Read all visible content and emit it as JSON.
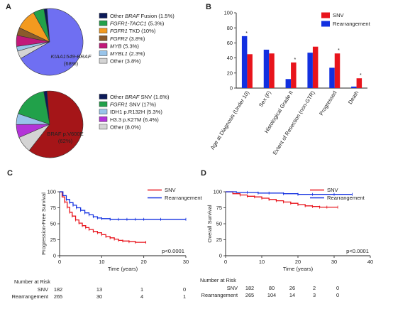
{
  "panels": {
    "a": "A",
    "b": "B",
    "c": "C",
    "d": "D"
  },
  "colors": {
    "navy": "#0b1a59",
    "green": "#21a14a",
    "orange": "#f39a1f",
    "brown": "#8b5a2b",
    "magenta": "#c2187a",
    "lightblue": "#98c4ea",
    "grey": "#d4d4d4",
    "periwinkle": "#6f6ff2",
    "darkred": "#a51518",
    "purple": "#b334d8",
    "red": "#e8141c",
    "blue": "#1230e0"
  },
  "chart_data": [
    {
      "type": "pie",
      "title": "",
      "slices": [
        {
          "name": "Other BRAF Fusion",
          "value": 1.5,
          "legend_pre": "Other ",
          "legend_it": "BRAF",
          "legend_post": " Fusion (1.5%)",
          "color": "navy"
        },
        {
          "name": "FGFR1-TACC1",
          "value": 5.3,
          "legend_pre": "",
          "legend_it": "FGFR1-TACC1",
          "legend_post": " (5.3%)",
          "color": "green"
        },
        {
          "name": "FGFR1 TKD",
          "value": 10,
          "legend_pre": "",
          "legend_it": "FGFR1",
          "legend_post": " TKD (10%)",
          "color": "orange"
        },
        {
          "name": "FGFR2",
          "value": 3.8,
          "legend_pre": "",
          "legend_it": "FGFR2",
          "legend_post": " (3.8%)",
          "color": "brown"
        },
        {
          "name": "MYB",
          "value": 5.3,
          "legend_pre": "",
          "legend_it": "MYB",
          "legend_post": " (5.3%)",
          "color": "magenta"
        },
        {
          "name": "MYBL1",
          "value": 2.3,
          "legend_pre": "",
          "legend_it": "MYBL1",
          "legend_post": " (2.3%)",
          "color": "lightblue"
        },
        {
          "name": "Other",
          "value": 3.8,
          "legend_pre": "Other (3.8%)",
          "legend_it": "",
          "legend_post": "",
          "color": "grey"
        },
        {
          "name": "KIAA1549-BRAF",
          "value": 68,
          "color": "periwinkle"
        }
      ],
      "big_label_1": "KIAA1549-BRAF",
      "big_label_2": "(68%)"
    },
    {
      "type": "pie",
      "title": "",
      "slices": [
        {
          "name": "Other BRAF SNV",
          "value": 1.6,
          "legend_pre": "Other ",
          "legend_it": "BRAF",
          "legend_post": " SNV (1.6%)",
          "color": "navy"
        },
        {
          "name": "FGFR1 SNV",
          "value": 17,
          "legend_pre": "",
          "legend_it": "FGFR1",
          "legend_post": " SNV (17%)",
          "color": "green"
        },
        {
          "name": "IDH1 p.R132H",
          "value": 5.3,
          "legend_pre": "IDH1 p.R132H (5.3%)",
          "legend_it": "",
          "legend_post": "",
          "color": "lightblue"
        },
        {
          "name": "H3.3 p.K27M",
          "value": 6.4,
          "legend_pre": "H3.3 p.K27M (6.4%)",
          "legend_it": "",
          "legend_post": "",
          "color": "purple"
        },
        {
          "name": "Other",
          "value": 8.0,
          "legend_pre": "Other (8.0%)",
          "legend_it": "",
          "legend_post": "",
          "color": "grey"
        },
        {
          "name": "BRAF p.V600E",
          "value": 62,
          "color": "darkred"
        }
      ],
      "big_label_1": "BRAF p.V600E",
      "big_label_2": "(62%)"
    },
    {
      "type": "bar",
      "title": "",
      "categories": [
        "Age at Diagnosis (Under 10)",
        "Sex (F)",
        "Histological Grade II",
        "Extent of Resection (non-GTR)",
        "Progressed",
        "Death"
      ],
      "series": [
        {
          "name": "Rearrangement",
          "color": "blue",
          "values": [
            69,
            51,
            12,
            47,
            27,
            2
          ]
        },
        {
          "name": "SNV",
          "color": "red",
          "values": [
            45,
            46,
            34,
            55,
            46,
            13
          ]
        }
      ],
      "significant": [
        "*",
        "",
        "*",
        "",
        "*",
        "*"
      ],
      "ylim": [
        0,
        100
      ],
      "yticks": [
        "0",
        "20",
        "40",
        "60",
        "80",
        "100"
      ],
      "ytick_values": [
        0,
        20,
        40,
        60,
        80,
        100
      ],
      "legend_order": [
        "SNV",
        "Rearrangement"
      ],
      "xlabel": "",
      "ylabel": ""
    },
    {
      "type": "line",
      "title": "",
      "ylabel": "Progression-Free Survival",
      "xlabel": "Time (years)",
      "xlim": [
        0,
        30
      ],
      "ylim": [
        0,
        100
      ],
      "xticks": [
        "0",
        "10",
        "20",
        "30"
      ],
      "xtick_values": [
        0,
        10,
        20,
        30
      ],
      "yticks": [
        "0",
        "25",
        "50",
        "75",
        "100"
      ],
      "ytick_values": [
        0,
        25,
        50,
        75,
        100
      ],
      "series": [
        {
          "name": "SNV",
          "color": "red",
          "x": [
            0,
            0.6,
            1.2,
            1.8,
            2.4,
            3,
            3.8,
            4.6,
            5.4,
            6.2,
            7,
            8,
            9,
            10,
            11,
            12,
            13,
            14,
            15,
            16.5,
            18,
            20.5
          ],
          "y": [
            100,
            92,
            84,
            76,
            68,
            62,
            56,
            51,
            47,
            44,
            41,
            38,
            36,
            33,
            30,
            28,
            26,
            24,
            23,
            22,
            21,
            21
          ]
        },
        {
          "name": "Rearrangement",
          "color": "blue",
          "x": [
            0,
            0.8,
            1.6,
            2.4,
            3.2,
            4,
            5,
            6,
            7,
            8,
            9,
            10,
            12,
            14,
            16,
            18,
            20,
            24,
            30
          ],
          "y": [
            100,
            94,
            88,
            83,
            79,
            75,
            71,
            67,
            64,
            61,
            59,
            58,
            57,
            57,
            57,
            57,
            57,
            57,
            57
          ]
        }
      ],
      "pvalue": "p<0.0001",
      "risk": {
        "title": "Number at Risk",
        "rows": [
          {
            "label": "SNV",
            "values": [
              "182",
              "13",
              "1",
              "0"
            ]
          },
          {
            "label": "Rearrangement",
            "values": [
              "265",
              "30",
              "4",
              "1"
            ]
          }
        ]
      }
    },
    {
      "type": "line",
      "title": "",
      "ylabel": "Overall Survival",
      "xlabel": "Time (years)",
      "xlim": [
        0,
        40
      ],
      "ylim": [
        0,
        100
      ],
      "xticks": [
        "0",
        "10",
        "20",
        "30",
        "40"
      ],
      "xtick_values": [
        0,
        10,
        20,
        30,
        40
      ],
      "yticks": [
        "0",
        "25",
        "50",
        "75",
        "100"
      ],
      "ytick_values": [
        0,
        25,
        50,
        75,
        100
      ],
      "series": [
        {
          "name": "SNV",
          "color": "red",
          "x": [
            0,
            2,
            4,
            6,
            8,
            10,
            12,
            14,
            16,
            18,
            20,
            22,
            24,
            26,
            28,
            31
          ],
          "y": [
            100,
            97,
            95,
            93,
            92,
            90,
            88,
            86,
            84,
            82,
            80,
            78,
            77,
            76,
            76,
            76
          ]
        },
        {
          "name": "Rearrangement",
          "color": "blue",
          "x": [
            0,
            3,
            6,
            9,
            12,
            16,
            20,
            24,
            30,
            35
          ],
          "y": [
            100,
            99,
            99,
            98,
            98,
            97,
            96,
            96,
            96,
            96
          ]
        }
      ],
      "pvalue": "p<0.0001",
      "risk": {
        "title": "Number at Risk",
        "rows": [
          {
            "label": "SNV",
            "values": [
              "182",
              "80",
              "26",
              "2",
              "0"
            ]
          },
          {
            "label": "Rearrangement",
            "values": [
              "265",
              "104",
              "14",
              "3",
              "0"
            ]
          }
        ]
      }
    }
  ]
}
